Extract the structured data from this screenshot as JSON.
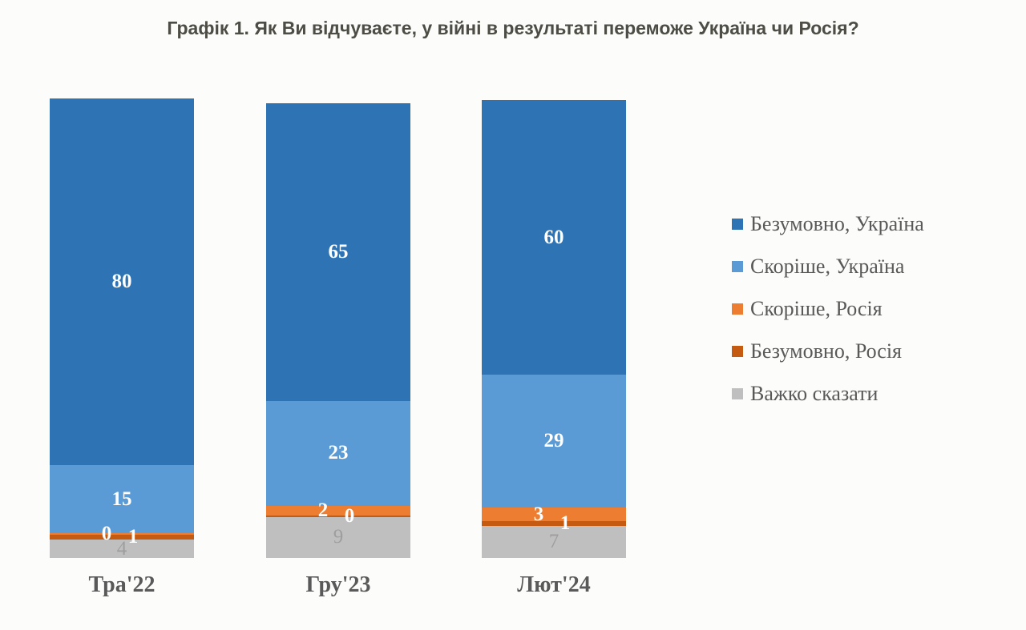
{
  "title": "Графік 1. Як Ви відчуваєте, у війні в результаті переможе Україна чи Росія?",
  "chart_data": {
    "type": "bar",
    "stacked": true,
    "orientation": "vertical",
    "categories": [
      "Тра'22",
      "Гру'23",
      "Лют'24"
    ],
    "series": [
      {
        "name": "Безумовно, Україна",
        "color": "#2e74b5",
        "values": [
          80,
          65,
          60
        ]
      },
      {
        "name": "Скоріше, Україна",
        "color": "#5b9bd5",
        "values": [
          15,
          23,
          29
        ]
      },
      {
        "name": "Скоріше, Росія",
        "color": "#ed7d31",
        "values": [
          0,
          2,
          3
        ]
      },
      {
        "name": "Безумовно, Росія",
        "color": "#c55a11",
        "values": [
          1,
          0,
          1
        ]
      },
      {
        "name": "Важко сказати",
        "color": "#bfbfbf",
        "values": [
          4,
          9,
          7
        ]
      }
    ],
    "data_labels": true,
    "label_color_default": "#ffffff",
    "label_color_last_series": "#9e9e9e",
    "ylim": [
      0,
      100
    ],
    "grid": false,
    "axes_visible": false,
    "legend_position": "right",
    "background": "#fcfcfa",
    "title_color": "#4d4d46",
    "axis_label_color": "#595959"
  }
}
